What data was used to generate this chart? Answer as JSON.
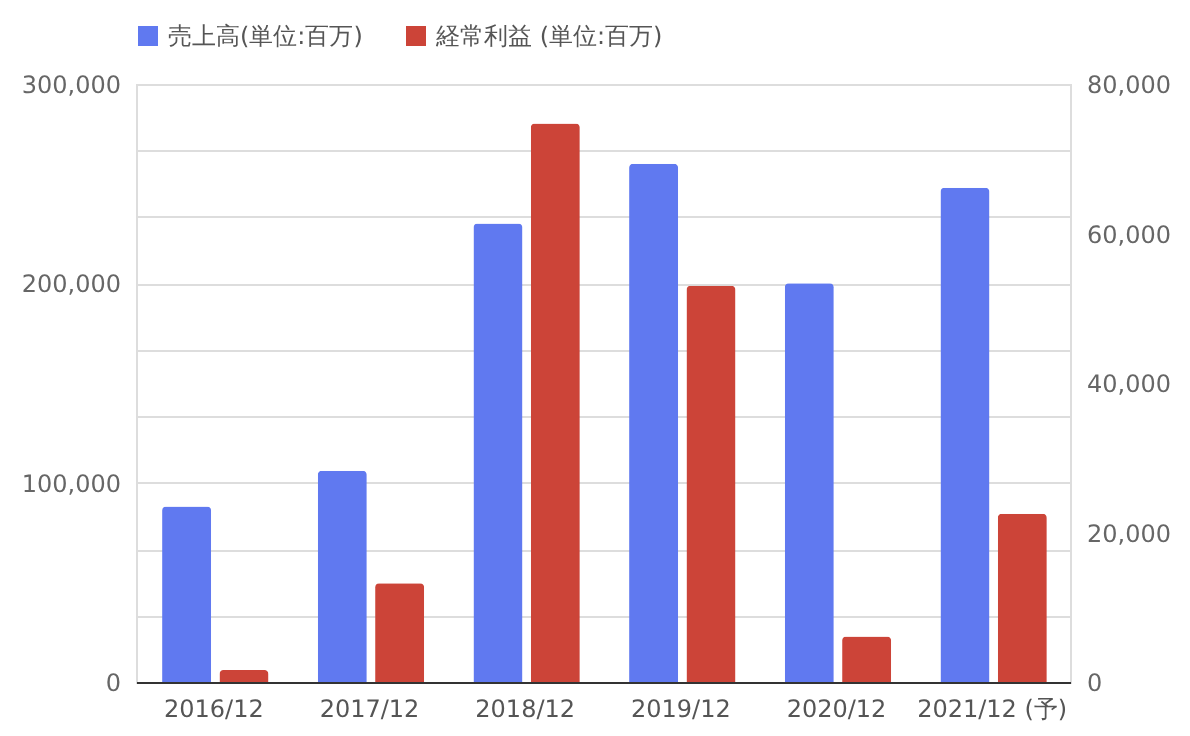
{
  "chart_data": {
    "type": "bar",
    "categories": [
      "2016/12",
      "2017/12",
      "2018/12",
      "2019/12",
      "2020/12",
      "2021/12 (予)"
    ],
    "series": [
      {
        "name": "売上高(単位:百万)",
        "color": "#6079f0",
        "values": [
          88000,
          106000,
          230000,
          260000,
          200000,
          248000
        ]
      },
      {
        "name": "経常利益 (単位:百万)",
        "color": "#cc4438",
        "axis": "y2",
        "values": [
          1600,
          13200,
          74700,
          53000,
          6100,
          22500
        ]
      }
    ],
    "ylim": [
      0,
      300000
    ],
    "yticks": [
      {
        "value": 0,
        "label": "0"
      },
      {
        "value": 33333,
        "label": null
      },
      {
        "value": 66667,
        "label": null
      },
      {
        "value": 100000,
        "label": "100,000"
      },
      {
        "value": 133333,
        "label": null
      },
      {
        "value": 166667,
        "label": null
      },
      {
        "value": 200000,
        "label": "200,000"
      },
      {
        "value": 233333,
        "label": null
      },
      {
        "value": 266667,
        "label": null
      },
      {
        "value": 300000,
        "label": "300,000"
      }
    ],
    "y2lim": [
      0,
      80000
    ],
    "y2ticks": [
      {
        "value": 0,
        "label": "0"
      },
      {
        "value": 20000,
        "label": "20,000"
      },
      {
        "value": 40000,
        "label": "40,000"
      },
      {
        "value": 60000,
        "label": "60,000"
      },
      {
        "value": 80000,
        "label": "80,000"
      }
    ],
    "grid": "y",
    "legend": "top"
  }
}
